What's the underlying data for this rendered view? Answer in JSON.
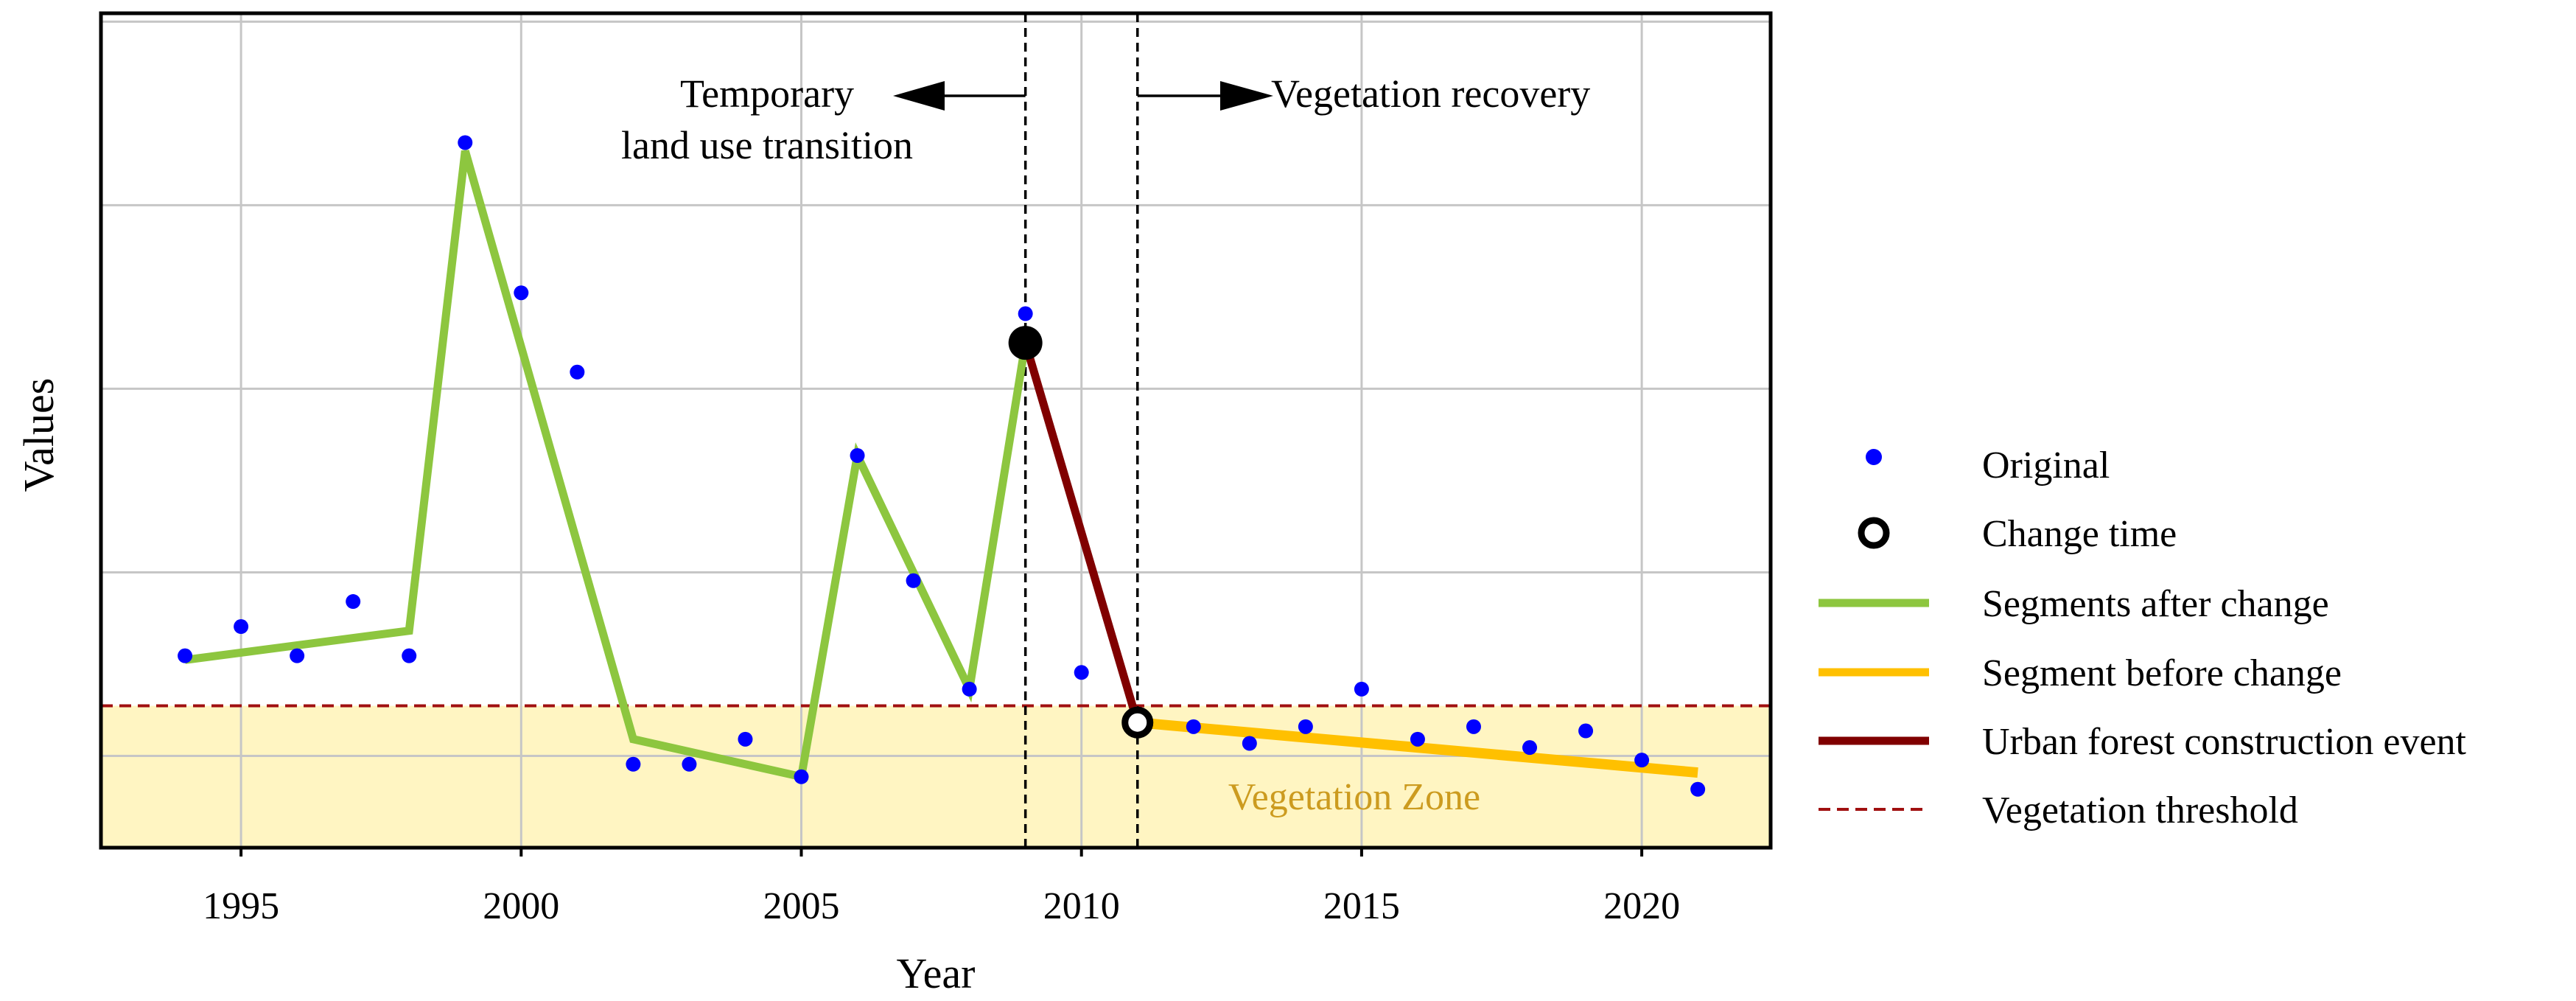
{
  "chart_data": {
    "type": "line",
    "title": "",
    "xlabel": "Year",
    "ylabel": "Values",
    "xlim": [
      1992.5,
      2022.3
    ],
    "ylim": [
      0,
      1.0
    ],
    "x_ticks": [
      1995,
      2000,
      2005,
      2010,
      2015,
      2020
    ],
    "y_gridlines": [
      0.11,
      0.33,
      0.55,
      0.77,
      0.99
    ],
    "grid": true,
    "original": {
      "name": "Original",
      "x": [
        1994,
        1995,
        1996,
        1997,
        1998,
        1999,
        2000,
        2001,
        2002,
        2003,
        2004,
        2005,
        2006,
        2007,
        2008,
        2009,
        2010,
        2011,
        2012,
        2013,
        2014,
        2015,
        2016,
        2017,
        2018,
        2019,
        2020,
        2021
      ],
      "y": [
        0.23,
        0.265,
        0.23,
        0.295,
        0.23,
        0.845,
        0.665,
        0.57,
        0.1,
        0.1,
        0.13,
        0.085,
        0.47,
        0.32,
        0.19,
        0.64,
        0.21,
        0.15,
        0.145,
        0.125,
        0.145,
        0.19,
        0.13,
        0.145,
        0.12,
        0.14,
        0.105,
        0.07
      ]
    },
    "segments_after_change": {
      "name": "Segments after change",
      "color": "#8dc63f",
      "x": [
        1994,
        1998,
        1999,
        2002,
        2005,
        2006,
        2008,
        2009
      ],
      "y": [
        0.225,
        0.26,
        0.835,
        0.13,
        0.085,
        0.47,
        0.19,
        0.605
      ]
    },
    "urban_forest_event": {
      "name": "Urban forest construction event",
      "color": "#800000",
      "x": [
        2009,
        2011
      ],
      "y": [
        0.605,
        0.15
      ]
    },
    "segment_before_change": {
      "name": "Segment before change",
      "color": "#ffc000",
      "x": [
        2011,
        2021
      ],
      "y": [
        0.15,
        0.09
      ]
    },
    "change_points": [
      {
        "x": 2009,
        "y": 0.605,
        "style": "filled"
      },
      {
        "x": 2011,
        "y": 0.15,
        "style": "open"
      }
    ],
    "vegetation_threshold": {
      "name": "Vegetation threshold",
      "y": 0.17,
      "color": "#a01010"
    },
    "vlines": [
      2009,
      2011
    ],
    "annotations": {
      "left_line1": "Temporary",
      "left_line2": "land use transition",
      "right": "Vegetation recovery",
      "zone": "Vegetation Zone"
    },
    "legend": [
      {
        "label": "Original",
        "kind": "dot",
        "color": "#0000ff"
      },
      {
        "label": "Change time",
        "kind": "ring",
        "color": "#000000"
      },
      {
        "label": "Segments after change",
        "kind": "line",
        "color": "#8dc63f"
      },
      {
        "label": "Segment before change",
        "kind": "line",
        "color": "#ffc000"
      },
      {
        "label": "Urban forest construction event",
        "kind": "line",
        "color": "#800000"
      },
      {
        "label": "Vegetation threshold",
        "kind": "dash",
        "color": "#a01010"
      }
    ]
  }
}
